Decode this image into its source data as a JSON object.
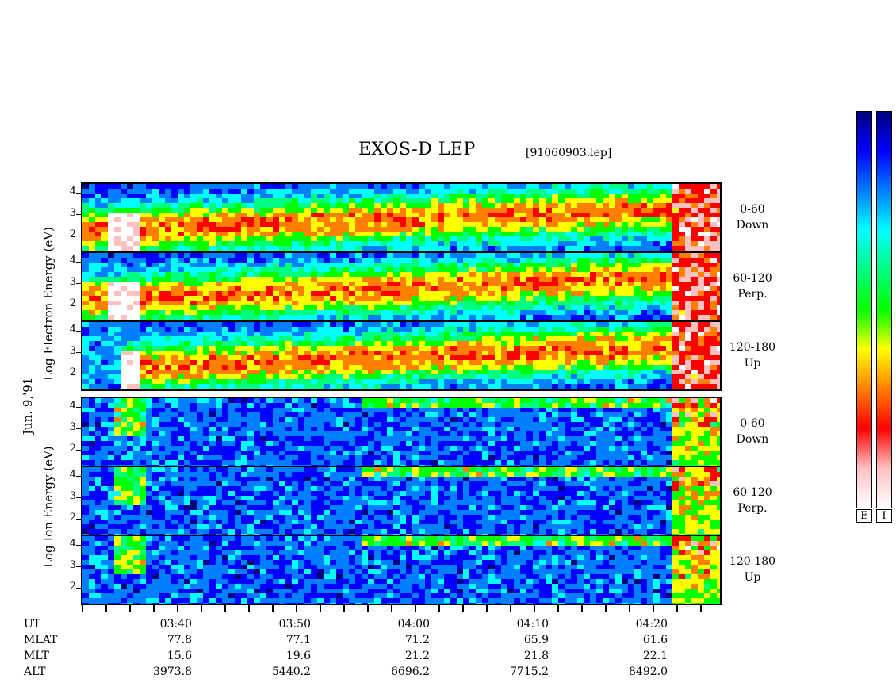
{
  "chart_data": {
    "type": "heatmap",
    "title": "EXOS-D LEP",
    "file_label": "[91060903.lep]",
    "date_label": "Jun. 9,'91",
    "electron_axis_label": [
      "Log",
      "Electron",
      "Energy",
      "(eV)"
    ],
    "ion_axis_label": [
      "Log",
      "Ion",
      "Energy",
      "(eV)"
    ],
    "y_ticks": [
      "4",
      "3",
      "2"
    ],
    "channels": [
      {
        "range": "0-60",
        "dir": "Down"
      },
      {
        "range": "60-120",
        "dir": "Perp."
      },
      {
        "range": "120-180",
        "dir": "Up"
      },
      {
        "range": "0-60",
        "dir": "Down"
      },
      {
        "range": "60-120",
        "dir": "Perp."
      },
      {
        "range": "120-180",
        "dir": "Up"
      }
    ],
    "x_axis": {
      "times": [
        "03:40",
        "03:50",
        "04:00",
        "04:10",
        "04:20"
      ],
      "rows": [
        {
          "label": "UT",
          "values": []
        },
        {
          "label": "MLAT",
          "values": [
            "77.8",
            "77.1",
            "71.2",
            "65.9",
            "61.6"
          ]
        },
        {
          "label": "MLT",
          "values": [
            "15.6",
            "19.6",
            "21.2",
            "21.8",
            "22.1"
          ]
        },
        {
          "label": "ALT",
          "values": [
            "3973.8",
            "5440.2",
            "6696.2",
            "7715.2",
            "8492.0"
          ]
        }
      ]
    },
    "colorbar_labels": [
      "E",
      "I"
    ],
    "colorscale": [
      "#000080",
      "#0000ff",
      "#0080ff",
      "#00ffff",
      "#00ff80",
      "#00ff00",
      "#ffff00",
      "#ff8000",
      "#ff0000",
      "#ffc0c0",
      "#ffffff"
    ]
  }
}
